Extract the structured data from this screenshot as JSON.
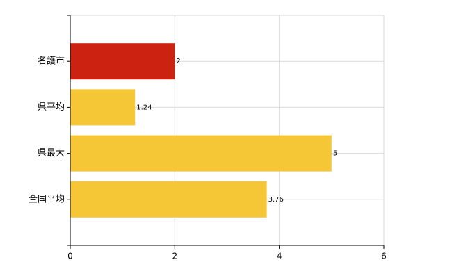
{
  "chart_data": {
    "type": "hbar",
    "categories": [
      "名護市",
      "県平均",
      "県最大",
      "全国平均"
    ],
    "values": [
      2,
      1.24,
      5,
      3.76
    ],
    "colors": [
      "#cc2211",
      "#f5c636",
      "#f5c636",
      "#f5c636"
    ],
    "xlim": [
      0,
      6
    ],
    "xticks": [
      0,
      2,
      4,
      6
    ],
    "grid": true
  }
}
